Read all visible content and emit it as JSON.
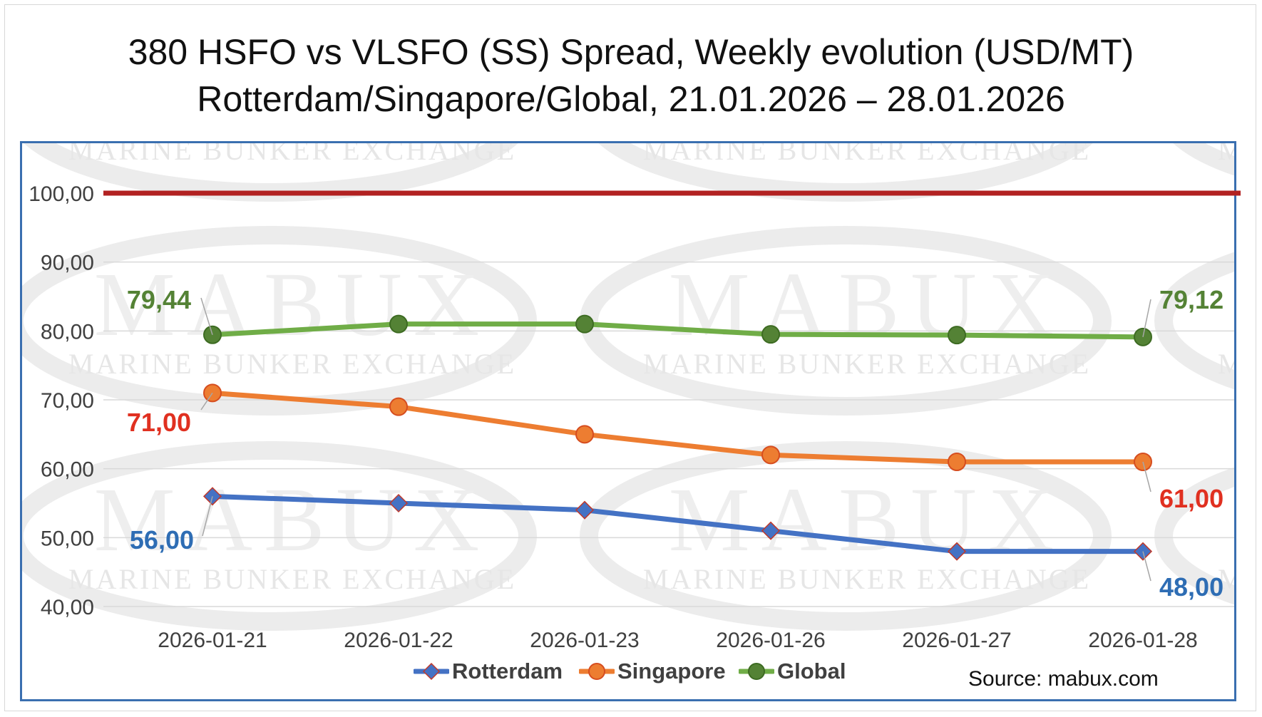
{
  "title_line1": "380 HSFO vs VLSFO (SS) Spread, Weekly evolution (USD/MT)",
  "title_line2": "Rotterdam/Singapore/Global, 21.01.2026 – 28.01.2026",
  "watermark": {
    "brand": "MABUX",
    "tagline": "MARINE BUNKER EXCHANGE"
  },
  "source": "Source: mabux.com",
  "colors": {
    "Rotterdam": "#4472c4",
    "Singapore": "#ed7d31",
    "Global": "#70ad47",
    "reference_line": "#b22222",
    "label_rotterdam": "#2e6db4",
    "label_singapore": "#e03020",
    "label_global": "#548235",
    "axis_text": "#404040",
    "grid": "#d9d9d9"
  },
  "chart_data": {
    "type": "line",
    "categories": [
      "2026-01-21",
      "2026-01-22",
      "2026-01-23",
      "2026-01-26",
      "2026-01-27",
      "2026-01-28"
    ],
    "series": [
      {
        "name": "Rotterdam",
        "values": [
          56,
          55,
          54,
          51,
          48,
          48
        ],
        "marker": "diamond"
      },
      {
        "name": "Singapore",
        "values": [
          71,
          69,
          65,
          62,
          61,
          61
        ],
        "marker": "circle"
      },
      {
        "name": "Global",
        "values": [
          79.44,
          81,
          81,
          79.5,
          79.4,
          79.12
        ],
        "marker": "circle"
      }
    ],
    "reference_line": {
      "value": 100
    },
    "data_labels": [
      {
        "series": "Global",
        "index": 0,
        "text": "79,44"
      },
      {
        "series": "Global",
        "index": 5,
        "text": "79,12"
      },
      {
        "series": "Singapore",
        "index": 0,
        "text": "71,00"
      },
      {
        "series": "Singapore",
        "index": 5,
        "text": "61,00"
      },
      {
        "series": "Rotterdam",
        "index": 0,
        "text": "56,00"
      },
      {
        "series": "Rotterdam",
        "index": 5,
        "text": "48,00"
      }
    ],
    "yticks": [
      "40,00",
      "50,00",
      "60,00",
      "70,00",
      "80,00",
      "90,00",
      "100,00"
    ],
    "ylim": [
      40,
      100
    ],
    "grid": true,
    "legend": {
      "position": "bottom",
      "entries": [
        "Rotterdam",
        "Singapore",
        "Global"
      ]
    }
  }
}
